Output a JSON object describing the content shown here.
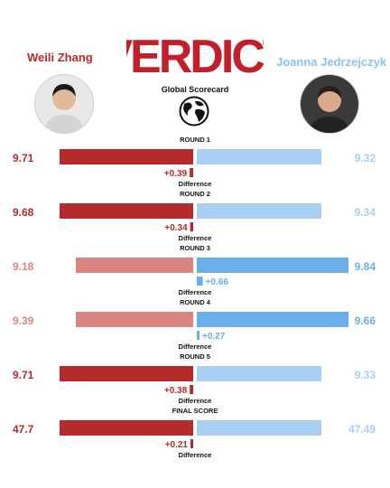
{
  "header": {
    "logo_text": "VERDICT",
    "subtitle": "Global Scorecard",
    "left_fighter": "Weili Zhang",
    "right_fighter": "Joanna Jedrzejczyk"
  },
  "colors": {
    "left_strong": "#b52a2a",
    "left_light": "#d98580",
    "right_strong": "#6aaeea",
    "right_light": "#a9d0f3"
  },
  "chart_data": {
    "type": "bar",
    "categories": [
      "ROUND 1",
      "ROUND 2",
      "ROUND 3",
      "ROUND 4",
      "ROUND 5",
      "FINAL SCORE"
    ],
    "series": [
      {
        "name": "Weili Zhang",
        "values": [
          9.71,
          9.68,
          9.18,
          9.39,
          9.71,
          47.7
        ]
      },
      {
        "name": "Joanna Jedrzejczyk",
        "values": [
          9.32,
          9.34,
          9.84,
          9.66,
          9.33,
          47.49
        ]
      }
    ],
    "value_labels_left": [
      "9.71",
      "9.68",
      "9.18",
      "9.39",
      "9.71",
      "47.7"
    ],
    "value_labels_right": [
      "9.32",
      "9.34",
      "9.84",
      "9.66",
      "9.33",
      "47.49"
    ],
    "differences": [
      "+0.39",
      "+0.34",
      "+0.66",
      "+0.27",
      "+0.38",
      "+0.21"
    ],
    "difference_winner": [
      "left",
      "left",
      "right",
      "right",
      "left",
      "left"
    ],
    "difference_values": [
      0.39,
      0.34,
      0.66,
      0.27,
      0.38,
      0.21
    ],
    "difference_label": "Difference"
  }
}
